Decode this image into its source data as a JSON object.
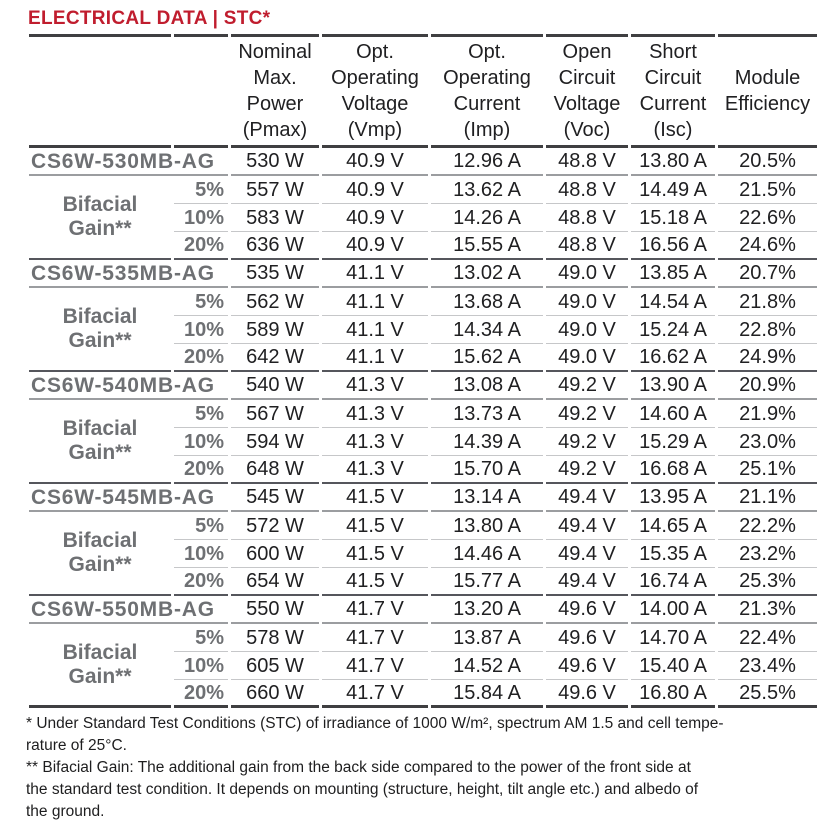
{
  "title": "ELECTRICAL DATA | STC*",
  "colors": {
    "title_red": "#C01D2E",
    "label_gray": "#6E7073",
    "text_dark": "#202022"
  },
  "table": {
    "column_headers": [
      "Nominal\nMax.\nPower\n(Pmax)",
      "Opt.\nOperating\nVoltage\n(Vmp)",
      "Opt.\nOperating\nCurrent\n(Imp)",
      "Open\nCircuit\nVoltage\n(Voc)",
      "Short\nCircuit\nCurrent\n(Isc)",
      "Module\nEfficiency"
    ],
    "blocks": [
      {
        "model": "CS6W-530MB-AG",
        "bifacial_label": "Bifacial\nGain**",
        "stc_row": [
          "530 W",
          "40.9 V",
          "12.96 A",
          "48.8 V",
          "13.80 A",
          "20.5%"
        ],
        "gain_rows": [
          {
            "gain": "5%",
            "values": [
              "557 W",
              "40.9 V",
              "13.62 A",
              "48.8 V",
              "14.49 A",
              "21.5%"
            ]
          },
          {
            "gain": "10%",
            "values": [
              "583 W",
              "40.9 V",
              "14.26 A",
              "48.8 V",
              "15.18 A",
              "22.6%"
            ]
          },
          {
            "gain": "20%",
            "values": [
              "636 W",
              "40.9 V",
              "15.55 A",
              "48.8 V",
              "16.56 A",
              "24.6%"
            ]
          }
        ]
      },
      {
        "model": "CS6W-535MB-AG",
        "bifacial_label": "Bifacial\nGain**",
        "stc_row": [
          "535 W",
          "41.1 V",
          "13.02 A",
          "49.0 V",
          "13.85 A",
          "20.7%"
        ],
        "gain_rows": [
          {
            "gain": "5%",
            "values": [
              "562 W",
              "41.1 V",
              "13.68 A",
              "49.0 V",
              "14.54 A",
              "21.8%"
            ]
          },
          {
            "gain": "10%",
            "values": [
              "589 W",
              "41.1 V",
              "14.34 A",
              "49.0 V",
              "15.24 A",
              "22.8%"
            ]
          },
          {
            "gain": "20%",
            "values": [
              "642 W",
              "41.1 V",
              "15.62 A",
              "49.0 V",
              "16.62 A",
              "24.9%"
            ]
          }
        ]
      },
      {
        "model": "CS6W-540MB-AG",
        "bifacial_label": "Bifacial\nGain**",
        "stc_row": [
          "540 W",
          "41.3 V",
          "13.08 A",
          "49.2 V",
          "13.90 A",
          "20.9%"
        ],
        "gain_rows": [
          {
            "gain": "5%",
            "values": [
              "567 W",
              "41.3 V",
              "13.73 A",
              "49.2 V",
              "14.60 A",
              "21.9%"
            ]
          },
          {
            "gain": "10%",
            "values": [
              "594 W",
              "41.3 V",
              "14.39 A",
              "49.2 V",
              "15.29 A",
              "23.0%"
            ]
          },
          {
            "gain": "20%",
            "values": [
              "648 W",
              "41.3 V",
              "15.70 A",
              "49.2 V",
              "16.68 A",
              "25.1%"
            ]
          }
        ]
      },
      {
        "model": "CS6W-545MB-AG",
        "bifacial_label": "Bifacial\nGain**",
        "stc_row": [
          "545 W",
          "41.5 V",
          "13.14 A",
          "49.4 V",
          "13.95 A",
          "21.1%"
        ],
        "gain_rows": [
          {
            "gain": "5%",
            "values": [
              "572 W",
              "41.5 V",
              "13.80 A",
              "49.4 V",
              "14.65 A",
              "22.2%"
            ]
          },
          {
            "gain": "10%",
            "values": [
              "600 W",
              "41.5 V",
              "14.46 A",
              "49.4 V",
              "15.35 A",
              "23.2%"
            ]
          },
          {
            "gain": "20%",
            "values": [
              "654 W",
              "41.5 V",
              "15.77 A",
              "49.4 V",
              "16.74 A",
              "25.3%"
            ]
          }
        ]
      },
      {
        "model": "CS6W-550MB-AG",
        "bifacial_label": "Bifacial\nGain**",
        "stc_row": [
          "550 W",
          "41.7 V",
          "13.20 A",
          "49.6 V",
          "14.00 A",
          "21.3%"
        ],
        "gain_rows": [
          {
            "gain": "5%",
            "values": [
              "578 W",
              "41.7 V",
              "13.87 A",
              "49.6 V",
              "14.70 A",
              "22.4%"
            ]
          },
          {
            "gain": "10%",
            "values": [
              "605 W",
              "41.7 V",
              "14.52 A",
              "49.6 V",
              "15.40 A",
              "23.4%"
            ]
          },
          {
            "gain": "20%",
            "values": [
              "660 W",
              "41.7 V",
              "15.84 A",
              "49.6 V",
              "16.80 A",
              "25.5%"
            ]
          }
        ]
      }
    ]
  },
  "footnotes": [
    "* Under Standard Test Conditions (STC) of irradiance of 1000 W/m², spectrum AM 1.5 and cell tempe-\nrature of 25°C.",
    "** Bifacial Gain: The additional gain from the back side compared to the power of the front side at\nthe standard test condition. It depends on mounting (structure, height, tilt angle etc.) and albedo of\nthe ground."
  ]
}
